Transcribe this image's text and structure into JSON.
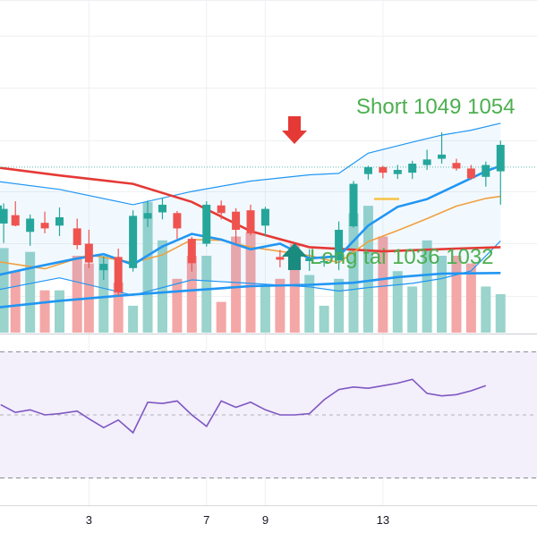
{
  "chart_data": {
    "type": "candlestick",
    "x_tick_labels": [
      "3",
      "7",
      "9",
      "13"
    ],
    "x_tick_candle_index": [
      3,
      7,
      9,
      13
    ],
    "candles": [
      {
        "x": -0.1,
        "o": 1029.6,
        "h": 1031.5,
        "l": 1027.6,
        "c": 1030.5
      },
      {
        "x": 0.1,
        "o": 1027.9,
        "h": 1030.8,
        "l": 1025.1,
        "c": 1030.0
      },
      {
        "x": 0.5,
        "o": 1029.1,
        "h": 1031.1,
        "l": 1027.5,
        "c": 1027.6
      },
      {
        "x": 1.0,
        "o": 1026.7,
        "h": 1029.2,
        "l": 1024.7,
        "c": 1028.6
      },
      {
        "x": 1.5,
        "o": 1028.0,
        "h": 1029.6,
        "l": 1026.5,
        "c": 1027.2
      },
      {
        "x": 2.0,
        "o": 1027.6,
        "h": 1030.2,
        "l": 1026.1,
        "c": 1028.8
      },
      {
        "x": 2.6,
        "o": 1027.2,
        "h": 1028.6,
        "l": 1024.2,
        "c": 1024.8
      },
      {
        "x": 3.0,
        "o": 1025.0,
        "h": 1027.0,
        "l": 1021.5,
        "c": 1022.3
      },
      {
        "x": 3.5,
        "o": 1021.2,
        "h": 1023.2,
        "l": 1019.8,
        "c": 1022.1
      },
      {
        "x": 4.0,
        "o": 1023.1,
        "h": 1024.3,
        "l": 1017.5,
        "c": 1018.0
      },
      {
        "x": 4.5,
        "o": 1021.5,
        "h": 1029.8,
        "l": 1021.0,
        "c": 1029.0
      },
      {
        "x": 5.0,
        "o": 1028.6,
        "h": 1031.2,
        "l": 1027.4,
        "c": 1029.4
      },
      {
        "x": 5.5,
        "o": 1029.5,
        "h": 1031.6,
        "l": 1028.5,
        "c": 1030.6
      },
      {
        "x": 6.0,
        "o": 1029.4,
        "h": 1029.7,
        "l": 1025.7,
        "c": 1027.2
      },
      {
        "x": 6.5,
        "o": 1025.7,
        "h": 1026.0,
        "l": 1021.0,
        "c": 1022.2
      },
      {
        "x": 7.0,
        "o": 1025.0,
        "h": 1031.1,
        "l": 1024.6,
        "c": 1030.6
      },
      {
        "x": 7.5,
        "o": 1030.5,
        "h": 1031.2,
        "l": 1028.5,
        "c": 1029.4
      },
      {
        "x": 8.0,
        "o": 1029.6,
        "h": 1030.1,
        "l": 1025.0,
        "c": 1027.0
      },
      {
        "x": 8.5,
        "o": 1029.8,
        "h": 1030.6,
        "l": 1026.2,
        "c": 1026.5
      },
      {
        "x": 9.0,
        "o": 1027.6,
        "h": 1030.3,
        "l": 1026.1,
        "c": 1030.0
      },
      {
        "x": 9.5,
        "o": 1023.1,
        "h": 1024.1,
        "l": 1021.6,
        "c": 1022.7
      },
      {
        "x": 10.0,
        "o": 1022.7,
        "h": 1023.6,
        "l": 1021.7,
        "c": 1022.5
      },
      {
        "x": 10.5,
        "o": 1022.5,
        "h": 1024.2,
        "l": 1021.1,
        "c": 1022.9
      },
      {
        "x": 11.0,
        "o": 1022.5,
        "h": 1023.3,
        "l": 1021.7,
        "c": 1022.5
      },
      {
        "x": 11.5,
        "o": 1022.6,
        "h": 1028.2,
        "l": 1021.2,
        "c": 1027.0
      },
      {
        "x": 12.0,
        "o": 1027.5,
        "h": 1034.0,
        "l": 1027.3,
        "c": 1033.6
      },
      {
        "x": 12.5,
        "o": 1035.0,
        "h": 1036.2,
        "l": 1034.2,
        "c": 1036.0
      },
      {
        "x": 13.0,
        "o": 1036.0,
        "h": 1036.2,
        "l": 1034.4,
        "c": 1035.2
      },
      {
        "x": 13.5,
        "o": 1035.0,
        "h": 1036.3,
        "l": 1034.3,
        "c": 1035.6
      },
      {
        "x": 14.0,
        "o": 1035.2,
        "h": 1036.9,
        "l": 1034.3,
        "c": 1036.5
      },
      {
        "x": 14.5,
        "o": 1036.3,
        "h": 1038.5,
        "l": 1035.6,
        "c": 1037.1
      },
      {
        "x": 15.0,
        "o": 1037.2,
        "h": 1041.0,
        "l": 1036.5,
        "c": 1037.8
      },
      {
        "x": 15.5,
        "o": 1036.6,
        "h": 1037.2,
        "l": 1035.5,
        "c": 1035.8
      },
      {
        "x": 16.0,
        "o": 1035.8,
        "h": 1036.3,
        "l": 1034.2,
        "c": 1034.4
      },
      {
        "x": 16.5,
        "o": 1034.6,
        "h": 1036.8,
        "l": 1033.2,
        "c": 1036.3
      },
      {
        "x": 17.0,
        "o": 1035.4,
        "h": 1039.8,
        "l": 1030.6,
        "c": 1039.2
      }
    ],
    "volume": [
      14,
      22,
      16,
      21,
      11,
      11,
      20,
      18,
      20,
      13,
      7,
      34,
      24,
      14,
      20,
      20,
      8,
      25,
      26,
      12,
      14,
      23,
      15,
      7,
      14,
      31,
      33,
      25,
      16,
      12,
      24,
      20,
      20,
      18,
      12,
      10
    ],
    "ma_long_red": [
      [
        -0.2,
        1036.0
      ],
      [
        2.0,
        1034.8
      ],
      [
        4.5,
        1033.6
      ],
      [
        6.5,
        1031.0
      ],
      [
        8.5,
        1026.8
      ],
      [
        10.5,
        1024.5
      ],
      [
        13.0,
        1023.9
      ],
      [
        15.5,
        1024.3
      ],
      [
        17.0,
        1024.5
      ]
    ],
    "ma_mid_blue": [
      [
        -0.2,
        1015.8
      ],
      [
        2.0,
        1016.8
      ],
      [
        4.5,
        1017.7
      ],
      [
        6.5,
        1018.3
      ],
      [
        8.5,
        1018.9
      ],
      [
        10.5,
        1019.1
      ],
      [
        12.0,
        1019.4
      ],
      [
        13.5,
        1020.2
      ],
      [
        15.0,
        1020.7
      ],
      [
        17.0,
        1020.8
      ]
    ],
    "ma_fast_blue": [
      [
        -0.2,
        1020.4
      ],
      [
        1.0,
        1021.5
      ],
      [
        2.5,
        1022.8
      ],
      [
        3.5,
        1023.5
      ],
      [
        4.5,
        1022.0
      ],
      [
        5.5,
        1024.6
      ],
      [
        6.5,
        1026.4
      ],
      [
        7.5,
        1025.6
      ],
      [
        8.5,
        1024.2
      ],
      [
        9.5,
        1025.0
      ],
      [
        10.5,
        1022.9
      ],
      [
        11.5,
        1023.2
      ],
      [
        12.5,
        1027.6
      ],
      [
        13.5,
        1030.3
      ],
      [
        14.5,
        1031.4
      ],
      [
        15.5,
        1033.4
      ],
      [
        16.5,
        1035.4
      ],
      [
        17.0,
        1036.2
      ]
    ],
    "ma_orange": [
      [
        -0.2,
        1022.5
      ],
      [
        1.5,
        1021.4
      ],
      [
        3.0,
        1023.4
      ],
      [
        4.5,
        1022.3
      ],
      [
        5.5,
        1023.4
      ],
      [
        6.5,
        1025.6
      ],
      [
        7.5,
        1025.5
      ],
      [
        8.5,
        1024.5
      ],
      [
        9.5,
        1023.9
      ],
      [
        10.5,
        1023.3
      ],
      [
        11.5,
        1022.3
      ],
      [
        12.5,
        1025.3
      ],
      [
        13.5,
        1026.9
      ],
      [
        14.5,
        1028.6
      ],
      [
        15.5,
        1030.4
      ],
      [
        16.5,
        1031.5
      ],
      [
        17.0,
        1031.8
      ]
    ],
    "bb_upper": [
      [
        -0.2,
        1034.0
      ],
      [
        2.0,
        1032.8
      ],
      [
        4.5,
        1030.6
      ],
      [
        6.5,
        1032.5
      ],
      [
        8.5,
        1034.0
      ],
      [
        10.5,
        1034.9
      ],
      [
        11.5,
        1035.1
      ],
      [
        12.5,
        1038.0
      ],
      [
        14.0,
        1039.6
      ],
      [
        15.0,
        1040.6
      ],
      [
        16.0,
        1041.3
      ],
      [
        17.0,
        1042.3
      ]
    ],
    "bb_lower": [
      [
        -0.2,
        1018.3
      ],
      [
        2.0,
        1020.1
      ],
      [
        4.5,
        1017.6
      ],
      [
        6.5,
        1019.8
      ],
      [
        8.5,
        1019.3
      ],
      [
        10.5,
        1018.8
      ],
      [
        11.5,
        1018.2
      ],
      [
        12.5,
        1018.7
      ],
      [
        14.0,
        1019.3
      ],
      [
        15.0,
        1020.0
      ],
      [
        16.0,
        1021.1
      ],
      [
        17.0,
        1025.4
      ]
    ],
    "rsi": [
      [
        0.0,
        58
      ],
      [
        0.5,
        52
      ],
      [
        1.0,
        54
      ],
      [
        1.5,
        50
      ],
      [
        2.0,
        51
      ],
      [
        2.6,
        53
      ],
      [
        3.0,
        47
      ],
      [
        3.5,
        40
      ],
      [
        4.0,
        46
      ],
      [
        4.5,
        36
      ],
      [
        5.0,
        60
      ],
      [
        5.5,
        59
      ],
      [
        6.0,
        61
      ],
      [
        6.5,
        50
      ],
      [
        7.0,
        41
      ],
      [
        7.5,
        61
      ],
      [
        8.0,
        56
      ],
      [
        8.5,
        60
      ],
      [
        9.0,
        54
      ],
      [
        9.5,
        50
      ],
      [
        10.0,
        50
      ],
      [
        10.5,
        51
      ],
      [
        11.0,
        62
      ],
      [
        11.5,
        70
      ],
      [
        12.0,
        72
      ],
      [
        12.5,
        71
      ],
      [
        13.0,
        73
      ],
      [
        13.5,
        75
      ],
      [
        14.0,
        78
      ],
      [
        14.5,
        67
      ],
      [
        15.0,
        65
      ],
      [
        15.5,
        66
      ],
      [
        16.0,
        69
      ],
      [
        16.5,
        73
      ]
    ],
    "rsi_range": [
      0,
      100
    ],
    "rsi_band": [
      30,
      70
    ],
    "horizontal_level": 1036.0,
    "annotations": {
      "short": "Short 1049 1054",
      "long": "Long tai 1036 1032"
    },
    "colors": {
      "up": "#26a69a",
      "down": "#ef5350",
      "up_volume": "#9ad4cc",
      "down_volume": "#f4a7a7",
      "ma_long": "#e53935",
      "ma_blue": "#2196f3",
      "ma_orange": "#f0a040",
      "bollinger": "#2196f3",
      "rsi_line": "#7e57c2",
      "annotation_text": "#4caf50",
      "short_arrow": "#e53935",
      "long_arrow": "#1a8b7f",
      "yellow_marker": "#f6c344"
    },
    "grid": true
  }
}
